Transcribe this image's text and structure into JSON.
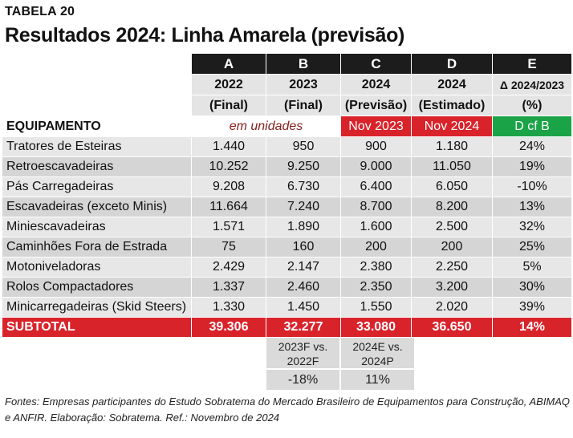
{
  "table_label": "TABELA 20",
  "title": "Resultados 2024: Linha Amarela (previsão)",
  "columns": [
    {
      "letter": "A",
      "year": "2022",
      "sub": "(Final)"
    },
    {
      "letter": "B",
      "year": "2023",
      "sub": "(Final)"
    },
    {
      "letter": "C",
      "year": "2024",
      "sub": "(Previsão)"
    },
    {
      "letter": "D",
      "year": "2024",
      "sub": "(Estimado)"
    },
    {
      "letter": "E",
      "year": "Δ 2024/2023",
      "sub": "(%)"
    }
  ],
  "equipment_header": "EQUIPAMENTO",
  "units_label": "em unidades",
  "ref_c": "Nov 2023",
  "ref_d": "Nov 2024",
  "ref_e": "D cf B",
  "rows": [
    {
      "name": "Tratores de Esteiras",
      "a": "1.440",
      "b": "950",
      "c": "900",
      "d": "1.180",
      "e": "24%"
    },
    {
      "name": "Retroescavadeiras",
      "a": "10.252",
      "b": "9.250",
      "c": "9.000",
      "d": "11.050",
      "e": "19%"
    },
    {
      "name": "Pás Carregadeiras",
      "a": "9.208",
      "b": "6.730",
      "c": "6.400",
      "d": "6.050",
      "e": "-10%"
    },
    {
      "name": "Escavadeiras (exceto Minis)",
      "a": "11.664",
      "b": "7.240",
      "c": "8.700",
      "d": "8.200",
      "e": "13%"
    },
    {
      "name": "Miniescavadeiras",
      "a": "1.571",
      "b": "1.890",
      "c": "1.600",
      "d": "2.500",
      "e": "32%"
    },
    {
      "name": "Caminhões Fora de Estrada",
      "a": "75",
      "b": "160",
      "c": "200",
      "d": "200",
      "e": "25%"
    },
    {
      "name": "Motoniveladoras",
      "a": "2.429",
      "b": "2.147",
      "c": "2.380",
      "d": "2.250",
      "e": "5%"
    },
    {
      "name": "Rolos Compactadores",
      "a": "1.337",
      "b": "2.460",
      "c": "2.350",
      "d": "3.200",
      "e": "30%"
    },
    {
      "name": "Minicarregadeiras (Skid Steers)",
      "a": "1.330",
      "b": "1.450",
      "c": "1.550",
      "d": "2.020",
      "e": "39%"
    }
  ],
  "subtotal": {
    "name": "SUBTOTAL",
    "a": "39.306",
    "b": "32.277",
    "c": "33.080",
    "d": "36.650",
    "e": "14%"
  },
  "comparisons": [
    {
      "line1": "2023F vs.",
      "line2": "2022F",
      "value": "-18%"
    },
    {
      "line1": "2024E vs.",
      "line2": "2024P",
      "value": "11%"
    }
  ],
  "sources": "Fontes: Empresas participantes do Estudo Sobratema do Mercado Brasileiro de Equipamentos para Construção, ABIMAQ e ANFIR. Elaboração: Sobratema. Ref.: Novembro de 2024"
}
